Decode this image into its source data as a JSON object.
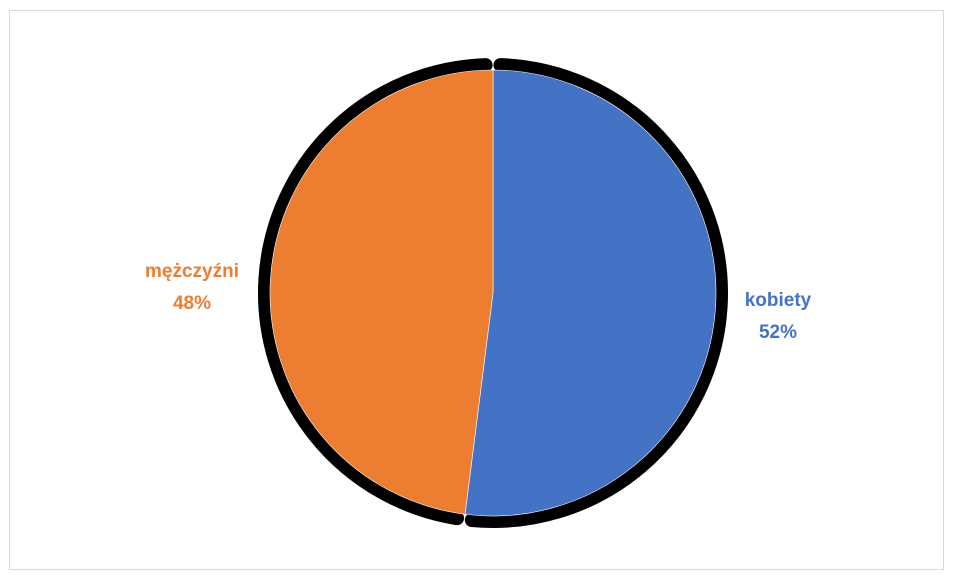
{
  "chart_data": {
    "type": "pie",
    "title": "",
    "slices": [
      {
        "label": "kobiety",
        "value": 52,
        "percent_label": "52%",
        "color": "#4472C4"
      },
      {
        "label": "mężczyźni",
        "value": 48,
        "percent_label": "48%",
        "color": "#ED7D31"
      }
    ],
    "start": "12 o'clock",
    "direction": "clockwise",
    "outline_color": "#000000",
    "legend": "none",
    "data_labels": "outside"
  }
}
